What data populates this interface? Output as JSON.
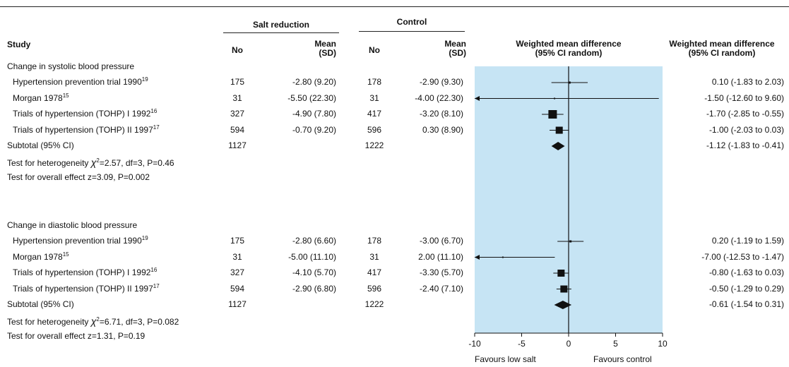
{
  "header": {
    "study": "Study",
    "group1": "Salt reduction",
    "group2": "Control",
    "no": "No",
    "mean_sd": "Mean\n(SD)",
    "wmd_plot": "Weighted mean difference\n(95% CI random)",
    "wmd_text": "Weighted mean difference\n(95% CI random)"
  },
  "sections": [
    {
      "title": "Change in systolic blood pressure",
      "rows": [
        {
          "study": "Hypertension prevention trial 1990",
          "ref": "19",
          "n1": "175",
          "m1": "-2.80 (9.20)",
          "n2": "178",
          "m2": "-2.90 (9.30)",
          "ci_text": "0.10 (-1.83 to 2.03)"
        },
        {
          "study": "Morgan 1978",
          "ref": "15",
          "n1": "31",
          "m1": "-5.50 (22.30)",
          "n2": "31",
          "m2": "-4.00 (22.30)",
          "ci_text": "-1.50 (-12.60 to 9.60)"
        },
        {
          "study": "Trials of hypertension (TOHP) I 1992",
          "ref": "16",
          "n1": "327",
          "m1": "-4.90 (7.80)",
          "n2": "417",
          "m2": "-3.20 (8.10)",
          "ci_text": "-1.70 (-2.85 to -0.55)"
        },
        {
          "study": "Trials of hypertension (TOHP) II 1997",
          "ref": "17",
          "n1": "594",
          "m1": "-0.70 (9.20)",
          "n2": "596",
          "m2": "0.30 (8.90)",
          "ci_text": "-1.00 (-2.03 to 0.03)"
        }
      ],
      "subtotal": {
        "label": "Subtotal (95% CI)",
        "n1": "1127",
        "n2": "1222",
        "ci_text": "-1.12 (-1.83 to -0.41)"
      },
      "heterogeneity": {
        "prefix": "Test for heterogeneity ",
        "chi": "χ",
        "sup": "2",
        "rest": "=2.57, df=3, P=0.46"
      },
      "overall": "Test for overall effect z=3.09, P=0.002"
    },
    {
      "title": "Change in diastolic blood pressure",
      "rows": [
        {
          "study": "Hypertension prevention trial 1990",
          "ref": "19",
          "n1": "175",
          "m1": "-2.80 (6.60)",
          "n2": "178",
          "m2": "-3.00 (6.70)",
          "ci_text": "0.20 (-1.19 to 1.59)"
        },
        {
          "study": "Morgan 1978",
          "ref": "15",
          "n1": "31",
          "m1": "-5.00 (11.10)",
          "n2": "31",
          "m2": "2.00 (11.10)",
          "ci_text": "-7.00 (-12.53 to -1.47)"
        },
        {
          "study": "Trials of hypertension (TOHP) I 1992",
          "ref": "16",
          "n1": "327",
          "m1": "-4.10 (5.70)",
          "n2": "417",
          "m2": "-3.30 (5.70)",
          "ci_text": "-0.80 (-1.63 to 0.03)"
        },
        {
          "study": "Trials of hypertension (TOHP) II 1997",
          "ref": "17",
          "n1": "594",
          "m1": "-2.90 (6.80)",
          "n2": "596",
          "m2": "-2.40 (7.10)",
          "ci_text": "-0.50 (-1.29 to 0.29)"
        }
      ],
      "subtotal": {
        "label": "Subtotal (95% CI)",
        "n1": "1127",
        "n2": "1222",
        "ci_text": "-0.61 (-1.54 to 0.31)"
      },
      "heterogeneity": {
        "prefix": "Test for heterogeneity ",
        "chi": "χ",
        "sup": "2",
        "rest": "=6.71, df=3, P=0.082"
      },
      "overall": "Test for overall effect z=1.31, P=0.19"
    }
  ],
  "footer": {
    "left": "Favours low salt",
    "right": "Favours control"
  },
  "chart_data": {
    "type": "forest",
    "xlim": [
      -10,
      10
    ],
    "ticks": [
      -10,
      -5,
      0,
      5,
      10
    ],
    "panel_color": "#c6e4f4",
    "series": [
      {
        "name": "Change in systolic blood pressure",
        "studies": [
          {
            "est": 0.1,
            "lo": -1.83,
            "hi": 2.03,
            "weight": "small"
          },
          {
            "est": -1.5,
            "lo": -12.6,
            "hi": 9.6,
            "weight": "tiny"
          },
          {
            "est": -1.7,
            "lo": -2.85,
            "hi": -0.55,
            "weight": "large"
          },
          {
            "est": -1.0,
            "lo": -2.03,
            "hi": 0.03,
            "weight": "medium"
          }
        ],
        "pooled": {
          "est": -1.12,
          "lo": -1.83,
          "hi": -0.41
        }
      },
      {
        "name": "Change in diastolic blood pressure",
        "studies": [
          {
            "est": 0.2,
            "lo": -1.19,
            "hi": 1.59,
            "weight": "small"
          },
          {
            "est": -7.0,
            "lo": -12.53,
            "hi": -1.47,
            "weight": "tiny"
          },
          {
            "est": -0.8,
            "lo": -1.63,
            "hi": 0.03,
            "weight": "medium"
          },
          {
            "est": -0.5,
            "lo": -1.29,
            "hi": 0.29,
            "weight": "medium"
          }
        ],
        "pooled": {
          "est": -0.61,
          "lo": -1.54,
          "hi": 0.31
        }
      }
    ]
  }
}
